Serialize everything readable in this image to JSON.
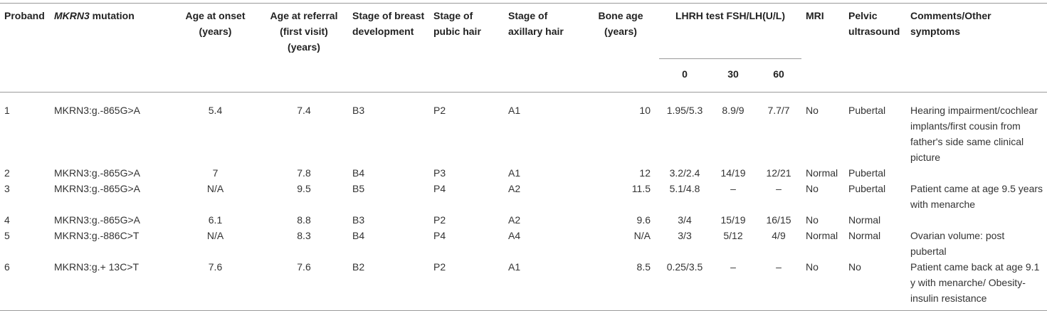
{
  "headers": {
    "proband": "Proband",
    "mutation_italic": "MKRN3",
    "mutation_rest": " mutation",
    "age_onset": "Age at onset (years)",
    "age_referral": "Age at referral (first visit) (years)",
    "breast": "Stage of breast development",
    "pubic": "Stage of pubic hair",
    "axillary": "Stage of axillary hair",
    "bone_age": "Bone age (years)",
    "lhrh": "LHRH test FSH/LH(U/L)",
    "lhrh_0": "0",
    "lhrh_30": "30",
    "lhrh_60": "60",
    "mri": "MRI",
    "pelvic": "Pelvic ultrasound",
    "comments": "Comments/Other symptoms"
  },
  "rows": [
    {
      "proband": "1",
      "mutation": "MKRN3:g.-865G>A",
      "onset": "5.4",
      "referral": "7.4",
      "breast": "B3",
      "pubic": "P2",
      "axillary": "A1",
      "bone_age": "10",
      "t0": "1.95/5.3",
      "t30": "8.9/9",
      "t60": "7.7/7",
      "mri": "No",
      "pelvic": "Pubertal",
      "comments": "Hearing impairment/cochlear implants/first cousin from father's side same clinical picture"
    },
    {
      "proband": "2",
      "mutation": "MKRN3:g.-865G>A",
      "onset": "7",
      "referral": "7.8",
      "breast": "B4",
      "pubic": "P3",
      "axillary": "A1",
      "bone_age": "12",
      "t0": "3.2/2.4",
      "t30": "14/19",
      "t60": "12/21",
      "mri": "Normal",
      "pelvic": "Pubertal",
      "comments": ""
    },
    {
      "proband": "3",
      "mutation": "MKRN3:g.-865G>A",
      "onset": "N/A",
      "referral": "9.5",
      "breast": "B5",
      "pubic": "P4",
      "axillary": "A2",
      "bone_age": "11.5",
      "t0": "5.1/4.8",
      "t30": "–",
      "t60": "–",
      "mri": "No",
      "pelvic": "Pubertal",
      "comments": "Patient came at age 9.5 years with menarche"
    },
    {
      "proband": "4",
      "mutation": "MKRN3:g.-865G>A",
      "onset": "6.1",
      "referral": "8.8",
      "breast": "B3",
      "pubic": "P2",
      "axillary": "A2",
      "bone_age": "9.6",
      "t0": "3/4",
      "t30": "15/19",
      "t60": "16/15",
      "mri": "No",
      "pelvic": "Normal",
      "comments": ""
    },
    {
      "proband": "5",
      "mutation": "MKRN3:g.-886C>T",
      "onset": "N/A",
      "referral": "8.3",
      "breast": "B4",
      "pubic": "P4",
      "axillary": "A4",
      "bone_age": "N/A",
      "t0": "3/3",
      "t30": "5/12",
      "t60": "4/9",
      "mri": "Normal",
      "pelvic": "Normal",
      "comments": "Ovarian volume: post pubertal"
    },
    {
      "proband": "6",
      "mutation": "MKRN3:g.+ 13C>T",
      "onset": "7.6",
      "referral": "7.6",
      "breast": "B2",
      "pubic": "P2",
      "axillary": "A1",
      "bone_age": "8.5",
      "t0": "0.25/3.5",
      "t30": "–",
      "t60": "–",
      "mri": "No",
      "pelvic": "No",
      "comments": "Patient came back at age 9.1 y with menarche/ Obesity-insulin resistance"
    }
  ]
}
